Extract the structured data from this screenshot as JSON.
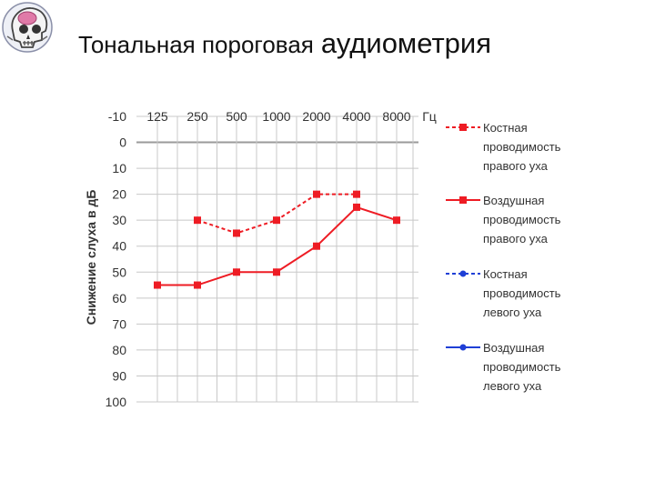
{
  "title": {
    "part1": "Тональная пороговая",
    "part2": "аудиометрия"
  },
  "logo": {
    "icon": "skull-icon"
  },
  "colors": {
    "right_ear": "#ee1c24",
    "left_ear": "#1f3fd6",
    "grid": "#c8c8c8"
  },
  "chart_data": {
    "type": "line",
    "x_categories": [
      "125",
      "250",
      "500",
      "1000",
      "2000",
      "4000",
      "8000"
    ],
    "x_unit": "Гц",
    "ylabel": "Снижение слуха в дБ",
    "y_ticks": [
      "-10",
      "0",
      "10",
      "20",
      "30",
      "40",
      "50",
      "60",
      "70",
      "80",
      "90",
      "100"
    ],
    "ylim": [
      -10,
      100
    ],
    "y_inverted": true,
    "x_axis_position": "top",
    "grid": true,
    "legend_position": "right",
    "series": [
      {
        "name": "Костная проводимость правого уха",
        "legend_lines": [
          "Костная",
          "проводимость",
          "правого уха"
        ],
        "color": "#ee1c24",
        "style": "dashed",
        "marker": "square",
        "values": [
          null,
          30,
          35,
          30,
          20,
          20,
          null
        ]
      },
      {
        "name": "Воздушная проводимость правого уха",
        "legend_lines": [
          "Воздушная",
          "проводимость",
          "правого уха"
        ],
        "color": "#ee1c24",
        "style": "solid",
        "marker": "square",
        "values": [
          55,
          55,
          50,
          50,
          40,
          25,
          30
        ]
      },
      {
        "name": "Костная проводимость левого уха",
        "legend_lines": [
          "Костная",
          "проводимость",
          "левого уха"
        ],
        "color": "#1f3fd6",
        "style": "dashed",
        "marker": "circle",
        "values": [
          null,
          null,
          null,
          null,
          null,
          null,
          null
        ]
      },
      {
        "name": "Воздушная проводимость левого уха",
        "legend_lines": [
          "Воздушная",
          "проводимость",
          "левого уха"
        ],
        "color": "#1f3fd6",
        "style": "solid",
        "marker": "circle",
        "values": [
          null,
          null,
          null,
          null,
          null,
          null,
          null
        ]
      }
    ]
  }
}
